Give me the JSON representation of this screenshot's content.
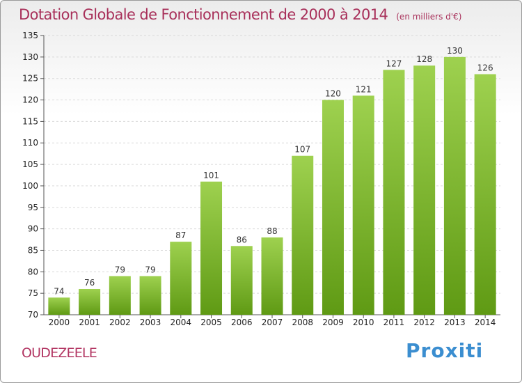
{
  "header": {
    "title": "Dotation Globale de Fonctionnement de 2000 à 2014",
    "subtitle": "(en milliers d'€)"
  },
  "footer": {
    "commune": "OUDEZEELE",
    "logo": "Proxiti"
  },
  "colors": {
    "title": "#a8305a",
    "bar_light": "#9ed14f",
    "bar_dark": "#5f9a14"
  },
  "chart_data": {
    "type": "bar",
    "title": "Dotation Globale de Fonctionnement de 2000 à 2014",
    "subtitle": "(en milliers d'€)",
    "xlabel": "",
    "ylabel": "",
    "categories": [
      "2000",
      "2001",
      "2002",
      "2003",
      "2004",
      "2005",
      "2006",
      "2007",
      "2008",
      "2009",
      "2010",
      "2011",
      "2012",
      "2013",
      "2014"
    ],
    "values": [
      74,
      76,
      79,
      79,
      87,
      101,
      86,
      88,
      107,
      120,
      121,
      127,
      128,
      130,
      126
    ],
    "ylim": [
      70,
      135
    ],
    "yticks": [
      70,
      75,
      80,
      85,
      90,
      95,
      100,
      105,
      110,
      115,
      120,
      125,
      130,
      135
    ],
    "grid": true,
    "legend": "none"
  }
}
